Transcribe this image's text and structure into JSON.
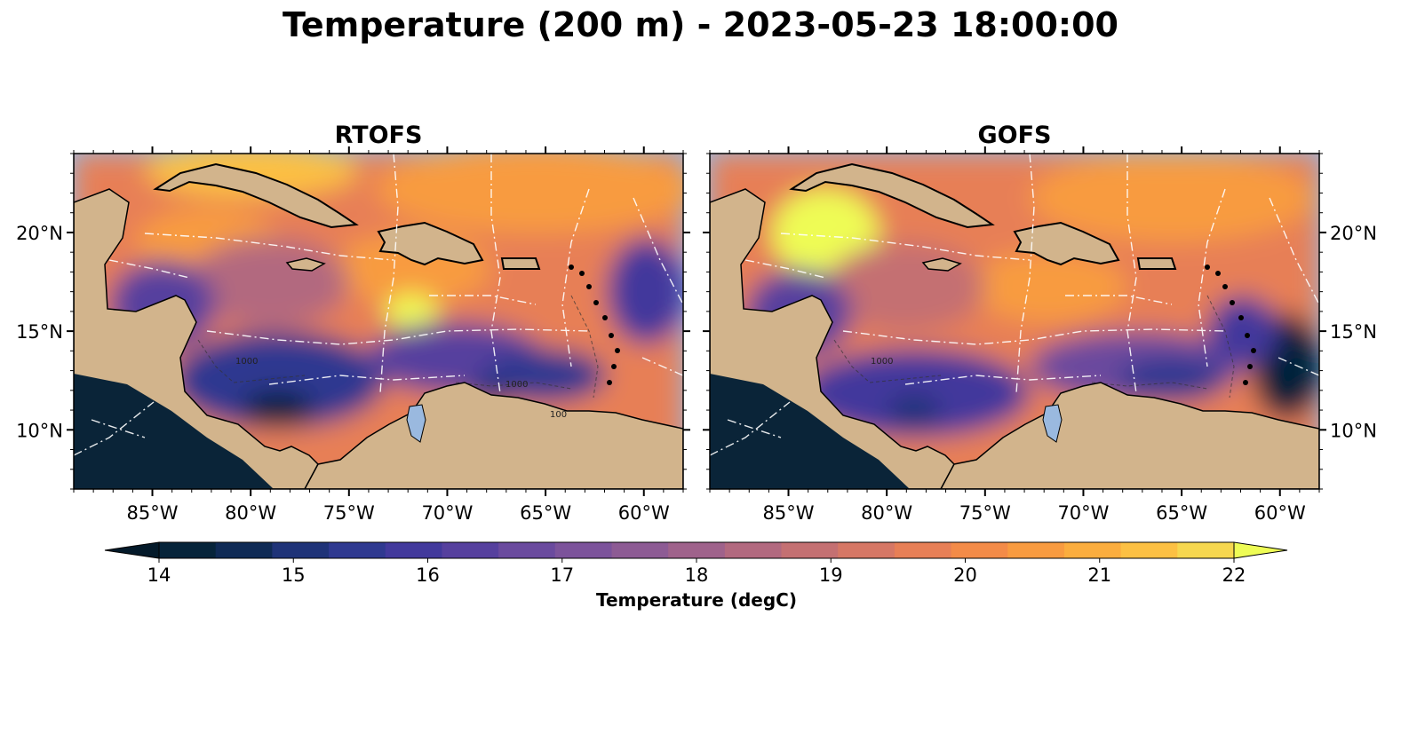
{
  "title": "Temperature (200 m) - 2023-05-23 18:00:00",
  "panels": [
    {
      "title": "RTOFS"
    },
    {
      "title": "GOFS"
    }
  ],
  "axes": {
    "lon_ticks": [
      "85°W",
      "80°W",
      "75°W",
      "70°W",
      "65°W",
      "60°W"
    ],
    "lon_values": [
      -85,
      -80,
      -75,
      -70,
      -65,
      -60
    ],
    "lat_ticks": [
      "20°N",
      "15°N",
      "10°N"
    ],
    "lat_values": [
      20,
      15,
      10
    ],
    "lon_range": [
      -89,
      -58
    ],
    "lat_range": [
      7,
      24
    ]
  },
  "colorbar": {
    "label": "Temperature (degC)",
    "ticks": [
      "14",
      "15",
      "16",
      "17",
      "18",
      "19",
      "20",
      "21",
      "22"
    ],
    "min": 14,
    "max": 22,
    "colors": [
      "#06243a",
      "#0f2a55",
      "#1f3378",
      "#2f3990",
      "#42399c",
      "#56409e",
      "#6a4a9e",
      "#7c539b",
      "#8d5b94",
      "#9f628b",
      "#b2697f",
      "#c47072",
      "#d67765",
      "#e77f56",
      "#f38b48",
      "#f89b40",
      "#fbad3e",
      "#fcc043",
      "#f6d74f"
    ],
    "extend": "both",
    "extend_low_color": "#041a2a",
    "extend_high_color": "#eefc55"
  },
  "map_colors": {
    "land": "#d2b48c",
    "shelf": "#9ab9df",
    "eez_lines": "#ffffff",
    "coast": "#000000"
  },
  "contour_labels": [
    "1000",
    "1000",
    "1000",
    "100"
  ]
}
